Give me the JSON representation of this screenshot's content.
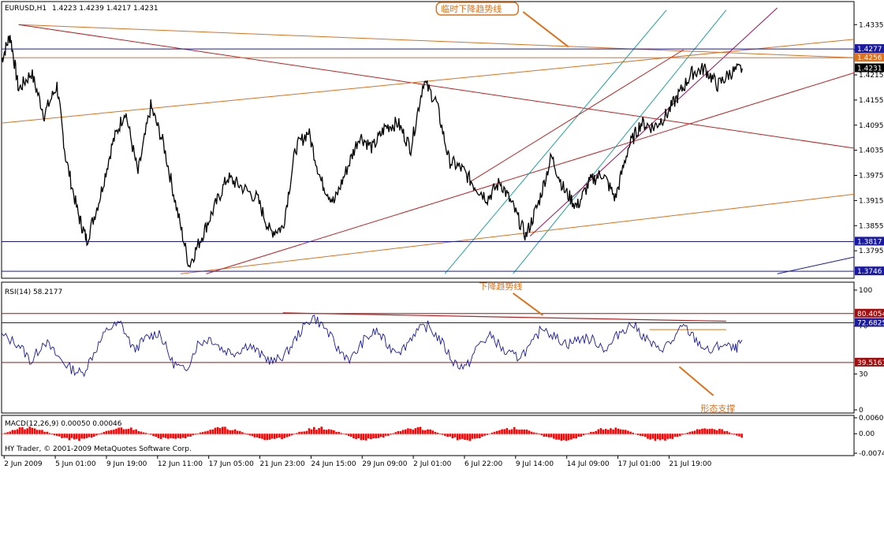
{
  "chart_data": [
    {
      "type": "candlestick",
      "header": {
        "symbol": "EURUSD,H1",
        "ohlc": "1.4223 1.4239 1.4217 1.4231"
      },
      "y_ticks": [
        "1.4335",
        "1.4275",
        "1.4215",
        "1.4155",
        "1.4095",
        "1.4035",
        "1.3975",
        "1.3915",
        "1.3855",
        "1.3795"
      ],
      "ylim": [
        1.3735,
        1.4375
      ],
      "price_levels": [
        {
          "label": "1.4277",
          "value": 1.4277,
          "box": "#1a1aa0"
        },
        {
          "label": "1.4256",
          "value": 1.4256,
          "box": "#e0701a"
        },
        {
          "label": "1.4231",
          "value": 1.4231,
          "box": "#000000"
        },
        {
          "label": "1.3817",
          "value": 1.3817,
          "box": "#1a1aa0"
        },
        {
          "label": "1.3746",
          "value": 1.3746,
          "box": "#1a1aa0"
        }
      ],
      "annotation": "临时下降趋势线",
      "price_path": [
        [
          0,
          1.425
        ],
        [
          0.01,
          1.431
        ],
        [
          0.02,
          1.418
        ],
        [
          0.035,
          1.422
        ],
        [
          0.05,
          1.412
        ],
        [
          0.065,
          1.419
        ],
        [
          0.075,
          1.402
        ],
        [
          0.09,
          1.388
        ],
        [
          0.1,
          1.382
        ],
        [
          0.115,
          1.392
        ],
        [
          0.13,
          1.405
        ],
        [
          0.145,
          1.413
        ],
        [
          0.16,
          1.398
        ],
        [
          0.175,
          1.414
        ],
        [
          0.19,
          1.405
        ],
        [
          0.205,
          1.39
        ],
        [
          0.22,
          1.376
        ],
        [
          0.235,
          1.383
        ],
        [
          0.25,
          1.39
        ],
        [
          0.265,
          1.397
        ],
        [
          0.28,
          1.395
        ],
        [
          0.3,
          1.392
        ],
        [
          0.315,
          1.384
        ],
        [
          0.33,
          1.385
        ],
        [
          0.345,
          1.404
        ],
        [
          0.36,
          1.408
        ],
        [
          0.375,
          1.396
        ],
        [
          0.39,
          1.391
        ],
        [
          0.405,
          1.399
        ],
        [
          0.42,
          1.407
        ],
        [
          0.435,
          1.404
        ],
        [
          0.45,
          1.409
        ],
        [
          0.465,
          1.41
        ],
        [
          0.48,
          1.404
        ],
        [
          0.495,
          1.42
        ],
        [
          0.51,
          1.415
        ],
        [
          0.525,
          1.401
        ],
        [
          0.54,
          1.399
        ],
        [
          0.555,
          1.395
        ],
        [
          0.57,
          1.392
        ],
        [
          0.585,
          1.396
        ],
        [
          0.6,
          1.39
        ],
        [
          0.615,
          1.383
        ],
        [
          0.63,
          1.391
        ],
        [
          0.645,
          1.402
        ],
        [
          0.66,
          1.394
        ],
        [
          0.675,
          1.39
        ],
        [
          0.69,
          1.396
        ],
        [
          0.705,
          1.398
        ],
        [
          0.72,
          1.392
        ],
        [
          0.735,
          1.404
        ],
        [
          0.75,
          1.41
        ],
        [
          0.765,
          1.409
        ],
        [
          0.78,
          1.412
        ],
        [
          0.795,
          1.417
        ],
        [
          0.81,
          1.422
        ],
        [
          0.825,
          1.423
        ],
        [
          0.84,
          1.419
        ],
        [
          0.855,
          1.422
        ],
        [
          0.87,
          1.4231
        ]
      ]
    },
    {
      "type": "line",
      "label": "RSI(14) 58.2177",
      "y_ticks": [
        "100",
        "70",
        "30",
        "0"
      ],
      "ylim": [
        0,
        100
      ],
      "levels": [
        {
          "label": "80.4054",
          "value": 80.4054,
          "box": "#a01010"
        },
        {
          "label": "72.6825",
          "value": 72.6825,
          "box": "#1a1aa0"
        },
        {
          "label": "39.5161",
          "value": 39.5161,
          "box": "#a01010"
        }
      ],
      "annotations": [
        "下降趋势线",
        "形态支撑"
      ],
      "rsi_path": [
        [
          0,
          62
        ],
        [
          0.02,
          55
        ],
        [
          0.035,
          40
        ],
        [
          0.05,
          58
        ],
        [
          0.065,
          45
        ],
        [
          0.08,
          35
        ],
        [
          0.095,
          30
        ],
        [
          0.11,
          50
        ],
        [
          0.125,
          68
        ],
        [
          0.14,
          72
        ],
        [
          0.155,
          50
        ],
        [
          0.17,
          60
        ],
        [
          0.185,
          65
        ],
        [
          0.2,
          40
        ],
        [
          0.215,
          32
        ],
        [
          0.23,
          55
        ],
        [
          0.245,
          60
        ],
        [
          0.26,
          50
        ],
        [
          0.275,
          48
        ],
        [
          0.29,
          55
        ],
        [
          0.305,
          45
        ],
        [
          0.32,
          40
        ],
        [
          0.335,
          48
        ],
        [
          0.35,
          65
        ],
        [
          0.365,
          78
        ],
        [
          0.38,
          68
        ],
        [
          0.395,
          50
        ],
        [
          0.41,
          42
        ],
        [
          0.425,
          58
        ],
        [
          0.44,
          66
        ],
        [
          0.455,
          52
        ],
        [
          0.47,
          50
        ],
        [
          0.485,
          65
        ],
        [
          0.5,
          70
        ],
        [
          0.515,
          58
        ],
        [
          0.53,
          40
        ],
        [
          0.545,
          35
        ],
        [
          0.56,
          55
        ],
        [
          0.575,
          62
        ],
        [
          0.59,
          48
        ],
        [
          0.605,
          44
        ],
        [
          0.62,
          52
        ],
        [
          0.635,
          70
        ],
        [
          0.65,
          60
        ],
        [
          0.665,
          55
        ],
        [
          0.68,
          60
        ],
        [
          0.695,
          58
        ],
        [
          0.71,
          50
        ],
        [
          0.725,
          65
        ],
        [
          0.74,
          72
        ],
        [
          0.755,
          60
        ],
        [
          0.77,
          50
        ],
        [
          0.785,
          56
        ],
        [
          0.8,
          70
        ],
        [
          0.815,
          58
        ],
        [
          0.83,
          48
        ],
        [
          0.845,
          55
        ],
        [
          0.86,
          50
        ],
        [
          0.87,
          58
        ]
      ]
    },
    {
      "type": "bar",
      "label": "MACD(12,26,9) 0.00050 0.00046",
      "y_ticks": [
        "0.00607",
        "0.00",
        "-0.00743"
      ],
      "ylim": [
        -0.00743,
        0.00607
      ]
    }
  ],
  "footer": "HY Trader, © 2001-2009 MetaQuotes Software Corp.",
  "x_ticks": [
    "2 Jun 2009",
    "5 Jun 01:00",
    "9 Jun 19:00",
    "12 Jun 11:00",
    "17 Jun 05:00",
    "21 Jun 23:00",
    "24 Jun 15:00",
    "29 Jun 09:00",
    "2 Jul 01:00",
    "6 Jul 22:00",
    "9 Jul 14:00",
    "14 Jul 09:00",
    "17 Jul 01:00",
    "21 Jul 19:00"
  ],
  "colors": {
    "trend_red": "#c02020",
    "trend_orange": "#e0701a",
    "channel_teal": "#20a0a0",
    "grid": "#000000",
    "macd": "#ff0000"
  }
}
